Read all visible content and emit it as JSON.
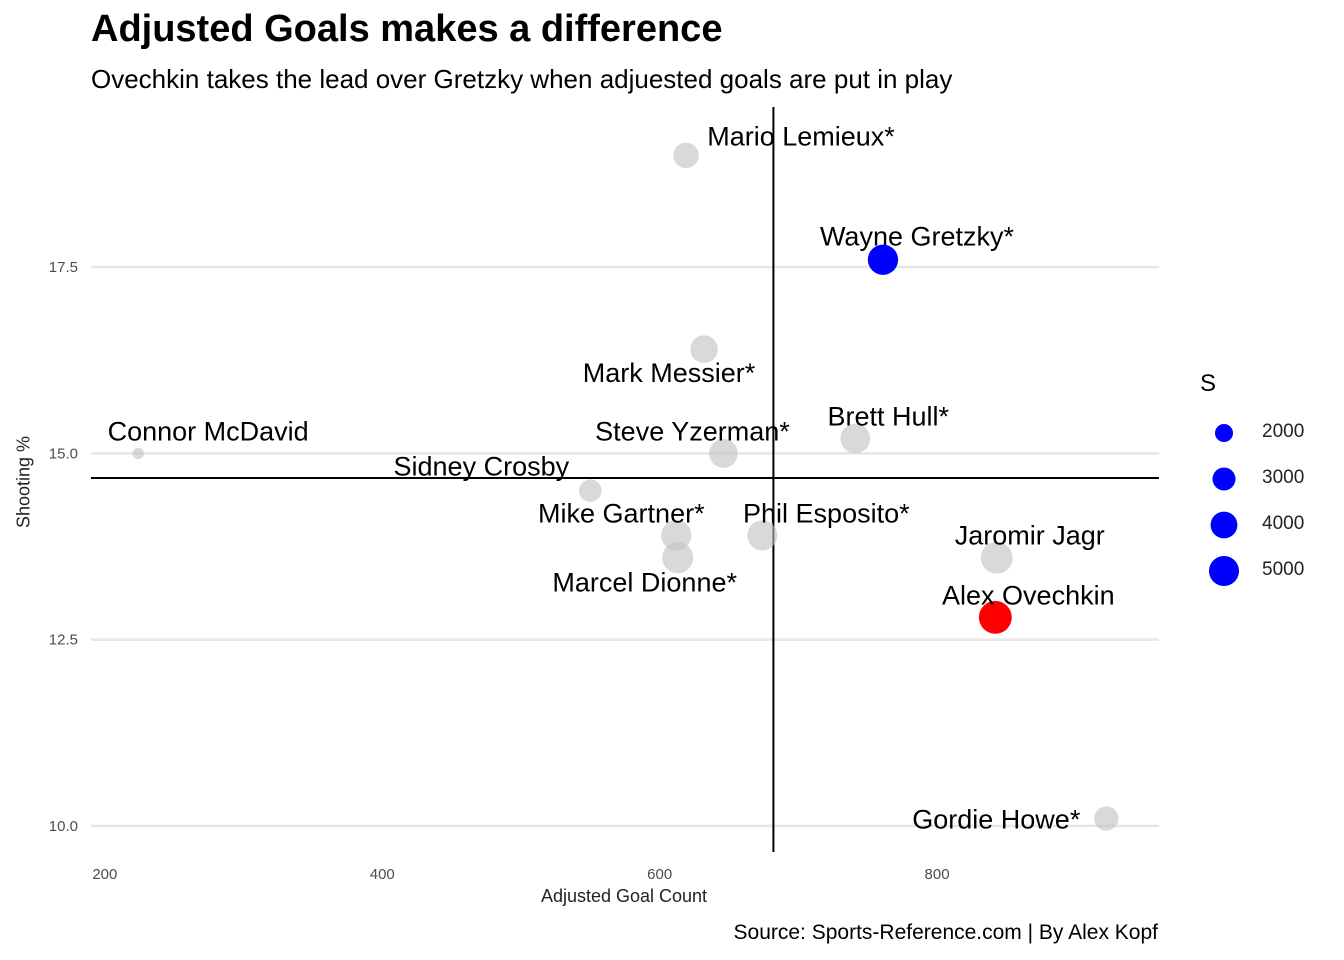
{
  "chart_data": {
    "type": "scatter",
    "title": "Adjusted Goals makes a difference",
    "subtitle": "Ovechkin takes the lead over Gretzky when adjuested goals are put in play",
    "caption": "Source: Sports-Reference.com | By Alex Kopf",
    "xlabel": "Adjusted Goal Count",
    "ylabel": "Shooting %",
    "xlim": [
      190,
      960
    ],
    "ylim": [
      9.65,
      19.65
    ],
    "x_ticks": [
      200,
      400,
      600,
      800
    ],
    "x_tick_labels": [
      "200",
      "400",
      "600",
      "800"
    ],
    "y_ticks": [
      10.0,
      12.5,
      15.0,
      17.5
    ],
    "y_tick_labels": [
      "10.0",
      "12.5",
      "15.0",
      "17.5"
    ],
    "grid": "horizontal-major",
    "reference_lines": {
      "vertical_x": 682,
      "horizontal_y": 14.67
    },
    "colors": {
      "highlight_gretzky": "#0000ff",
      "highlight_ovechkin": "#ff0000",
      "other": "#bfbfbf"
    },
    "size_legend": {
      "title": "S",
      "placement": "right",
      "entries": [
        {
          "label": "2000",
          "value": 2000
        },
        {
          "label": "3000",
          "value": 3000
        },
        {
          "label": "4000",
          "value": 4000
        },
        {
          "label": "5000",
          "value": 5000
        }
      ]
    },
    "points": [
      {
        "name": "Mario Lemieux*",
        "x": 619,
        "y": 19.0,
        "shots": 3633
      },
      {
        "name": "Wayne Gretzky*",
        "x": 761,
        "y": 17.6,
        "shots": 5089
      },
      {
        "name": "Mark Messier*",
        "x": 632,
        "y": 16.4,
        "shots": 4221
      },
      {
        "name": "Brett Hull*",
        "x": 741,
        "y": 15.2,
        "shots": 4876
      },
      {
        "name": "Connor McDavid",
        "x": 224,
        "y": 15.0,
        "shots": 1200
      },
      {
        "name": "Steve Yzerman*",
        "x": 646,
        "y": 15.0,
        "shots": 4602
      },
      {
        "name": "Sidney Crosby",
        "x": 550,
        "y": 14.5,
        "shots": 2900
      },
      {
        "name": "Mike Gartner*",
        "x": 612,
        "y": 13.9,
        "shots": 5090
      },
      {
        "name": "Phil Esposito*",
        "x": 674,
        "y": 13.9,
        "shots": 5000
      },
      {
        "name": "Marcel Dionne*",
        "x": 613,
        "y": 13.6,
        "shots": 5366
      },
      {
        "name": "Jaromir Jagr",
        "x": 843,
        "y": 13.6,
        "shots": 5637
      },
      {
        "name": "Alex Ovechkin",
        "x": 842,
        "y": 12.8,
        "shots": 6000
      },
      {
        "name": "Gordie Howe*",
        "x": 922,
        "y": 10.1,
        "shots": 3300
      }
    ]
  }
}
